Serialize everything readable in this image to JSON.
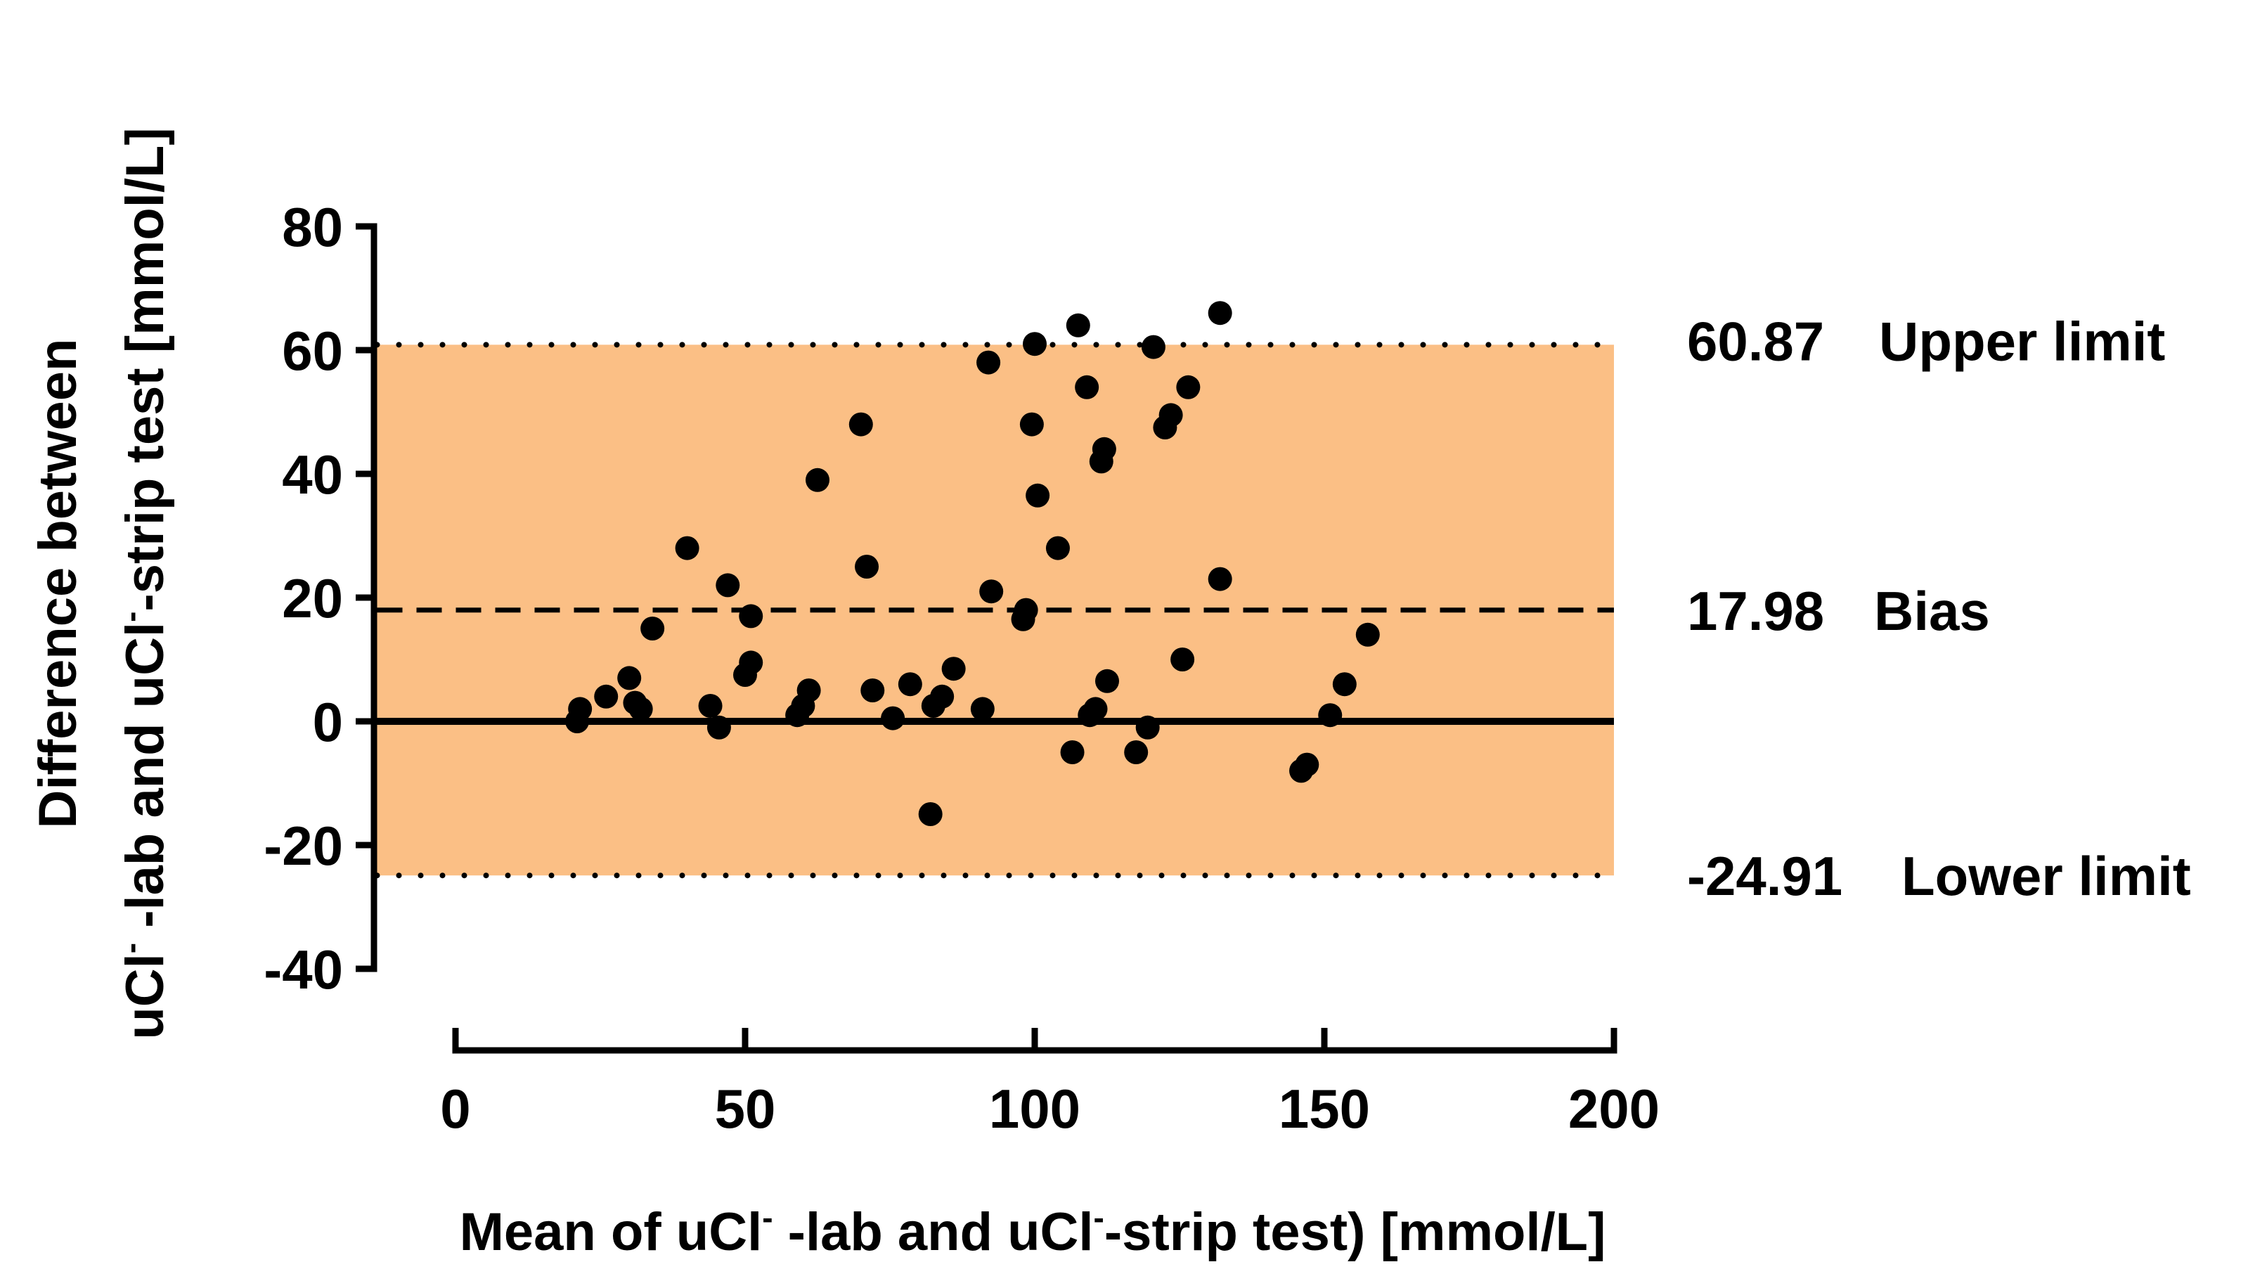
{
  "chart_data": {
    "type": "scatter",
    "title": "",
    "xlabel": {
      "before": "Mean of uCl",
      "sup1": "-",
      "middle": " -lab and uCl",
      "sup2": "-",
      "after": "-strip test) [mmol/L]"
    },
    "ylabel": {
      "line1": "Difference between",
      "line2_before": "uCl",
      "line2_sup1": "-",
      "line2_middle": " -lab and uCl",
      "line2_sup2": "-",
      "line2_after": "-strip test [mmol/L]"
    },
    "xlim": [
      0,
      200
    ],
    "ylim": [
      -40,
      80
    ],
    "x_ticks": [
      0,
      50,
      100,
      150,
      200
    ],
    "y_ticks": [
      -40,
      -20,
      0,
      20,
      40,
      60,
      80
    ],
    "grid": false,
    "limits_band": {
      "upper": 60.87,
      "lower": -24.91,
      "x_end": 200,
      "color": "#fbbf85"
    },
    "reference_lines": [
      {
        "name": "upper-limit",
        "value": 60.87,
        "style": "dotted",
        "value_label": "60.87",
        "text_label": "Upper limit"
      },
      {
        "name": "bias",
        "value": 17.98,
        "style": "dashed",
        "value_label": "17.98",
        "text_label": "Bias"
      },
      {
        "name": "zero",
        "value": 0,
        "style": "solid"
      },
      {
        "name": "lower-limit",
        "value": -24.91,
        "style": "dotted",
        "value_label": "-24.91",
        "text_label": "Lower limit"
      }
    ],
    "series": [
      {
        "name": "Difference vs mean",
        "color": "#000000",
        "points": [
          [
            21,
            0
          ],
          [
            21.5,
            2
          ],
          [
            26,
            4
          ],
          [
            30,
            7
          ],
          [
            31,
            3
          ],
          [
            32,
            2
          ],
          [
            34,
            15
          ],
          [
            40,
            28
          ],
          [
            44,
            2.5
          ],
          [
            45.5,
            -1
          ],
          [
            47,
            22
          ],
          [
            50,
            7.5
          ],
          [
            51,
            9.5
          ],
          [
            51,
            17
          ],
          [
            59,
            1
          ],
          [
            60,
            2.5
          ],
          [
            61,
            5
          ],
          [
            62.5,
            39
          ],
          [
            70,
            48
          ],
          [
            71,
            25
          ],
          [
            72,
            5
          ],
          [
            75.5,
            0.5
          ],
          [
            78.5,
            6
          ],
          [
            82,
            -15
          ],
          [
            82.5,
            2.5
          ],
          [
            84,
            4
          ],
          [
            86,
            8.5
          ],
          [
            91,
            2
          ],
          [
            92,
            58
          ],
          [
            92.5,
            21
          ],
          [
            98,
            16.5
          ],
          [
            98.5,
            18
          ],
          [
            99.5,
            48
          ],
          [
            100,
            61
          ],
          [
            100.5,
            36.5
          ],
          [
            104,
            28
          ],
          [
            106.5,
            -5
          ],
          [
            107.5,
            64
          ],
          [
            109,
            54
          ],
          [
            109.5,
            1
          ],
          [
            110.5,
            2
          ],
          [
            111.5,
            42
          ],
          [
            112,
            44
          ],
          [
            112.5,
            6.5
          ],
          [
            117.5,
            -5
          ],
          [
            119.5,
            -1
          ],
          [
            120.5,
            60.5
          ],
          [
            122.5,
            47.5
          ],
          [
            123.5,
            49.5
          ],
          [
            125.5,
            10
          ],
          [
            126.5,
            54
          ],
          [
            132,
            66
          ],
          [
            132,
            23
          ],
          [
            146,
            -8
          ],
          [
            147,
            -7
          ],
          [
            151,
            1
          ],
          [
            153.5,
            6
          ],
          [
            157.5,
            14
          ]
        ]
      }
    ]
  }
}
